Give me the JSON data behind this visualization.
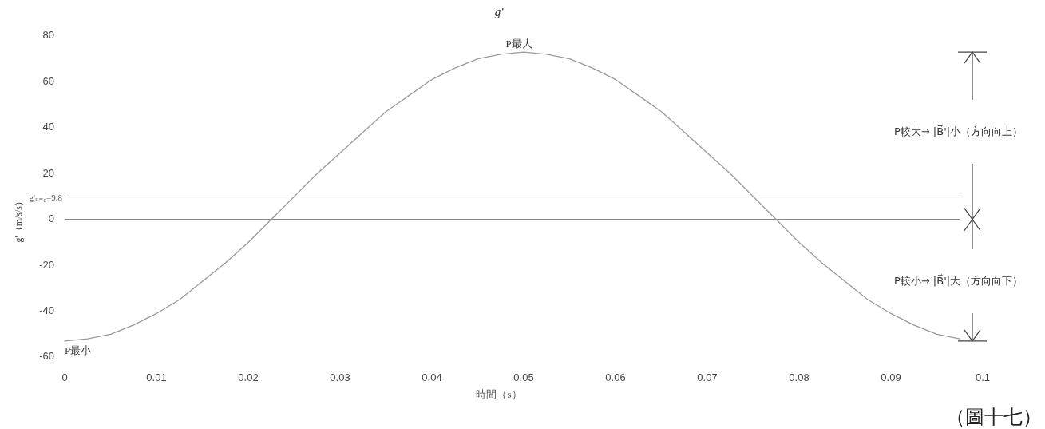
{
  "chart_data": {
    "type": "line",
    "title": "g'",
    "xlabel": "時間（s）",
    "ylabel": "g'（m/s/s）",
    "xlim": [
      0,
      0.1
    ],
    "xticks": [
      0,
      0.01,
      0.02,
      0.03,
      0.04,
      0.05,
      0.06,
      0.07,
      0.08,
      0.09,
      0.1
    ],
    "ylim": [
      -60,
      80
    ],
    "yticks": [
      -60,
      -40,
      -20,
      0,
      20,
      40,
      60,
      80
    ],
    "x": [
      0,
      0.0025,
      0.005,
      0.0075,
      0.01,
      0.0125,
      0.015,
      0.0175,
      0.02,
      0.0225,
      0.025,
      0.0275,
      0.03,
      0.0325,
      0.035,
      0.0375,
      0.04,
      0.0425,
      0.045,
      0.0475,
      0.05,
      0.0525,
      0.055,
      0.0575,
      0.06,
      0.0625,
      0.065,
      0.0675,
      0.07,
      0.0725,
      0.075,
      0.0775,
      0.08,
      0.0825,
      0.085,
      0.0875,
      0.09,
      0.0925,
      0.095,
      0.0975
    ],
    "series": [
      {
        "color": "#9a9a9a",
        "values": [
          -53,
          -52,
          -50,
          -46,
          -41,
          -35,
          -27,
          -19,
          -10,
          0,
          10,
          20,
          29,
          38,
          47,
          54,
          61,
          66,
          70,
          72,
          73,
          72,
          70,
          66,
          61,
          54,
          47,
          38,
          29,
          20,
          10,
          0,
          -10,
          -19,
          -27,
          -35,
          -41,
          -46,
          -50,
          -52
        ]
      }
    ],
    "ref_lines": [
      {
        "axis": "y",
        "value": 9.8,
        "label": "g'ₚ₌₀=9.8",
        "color": "#8a8a8a"
      },
      {
        "axis": "y",
        "value": 0,
        "color": "#6a6a6a"
      }
    ],
    "annotations": [
      "P最大",
      "P最小",
      "P較大→ |B⃗'|小（方向向上）",
      "P較小→ |B⃗'|大（方向向下）",
      "（圖十七）"
    ],
    "grid": false,
    "marker": "none",
    "line_style": "solid"
  }
}
